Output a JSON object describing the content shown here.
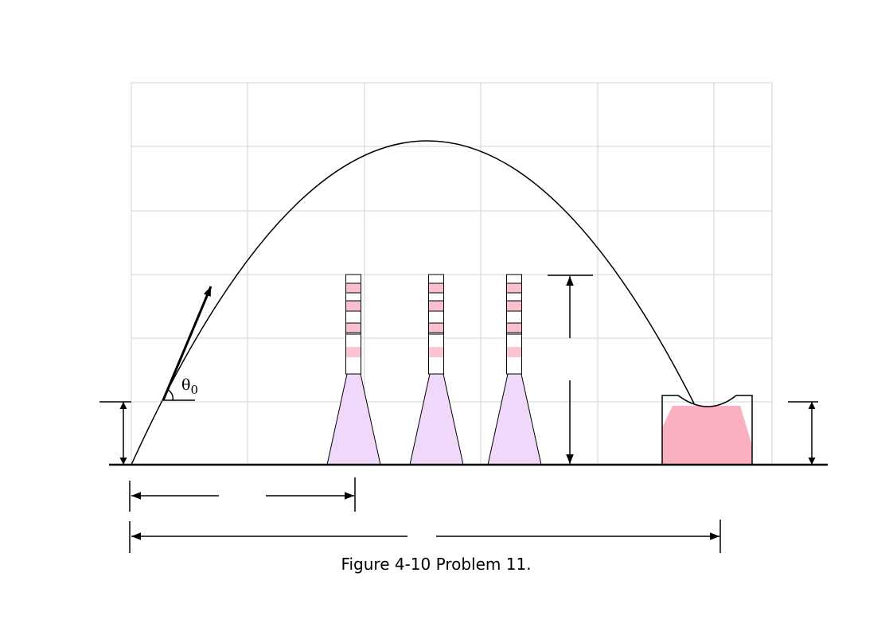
{
  "angle_label": {
    "symbol": "θ",
    "subscript": "0"
  },
  "caption": "Figure 4-10 Problem 11."
}
